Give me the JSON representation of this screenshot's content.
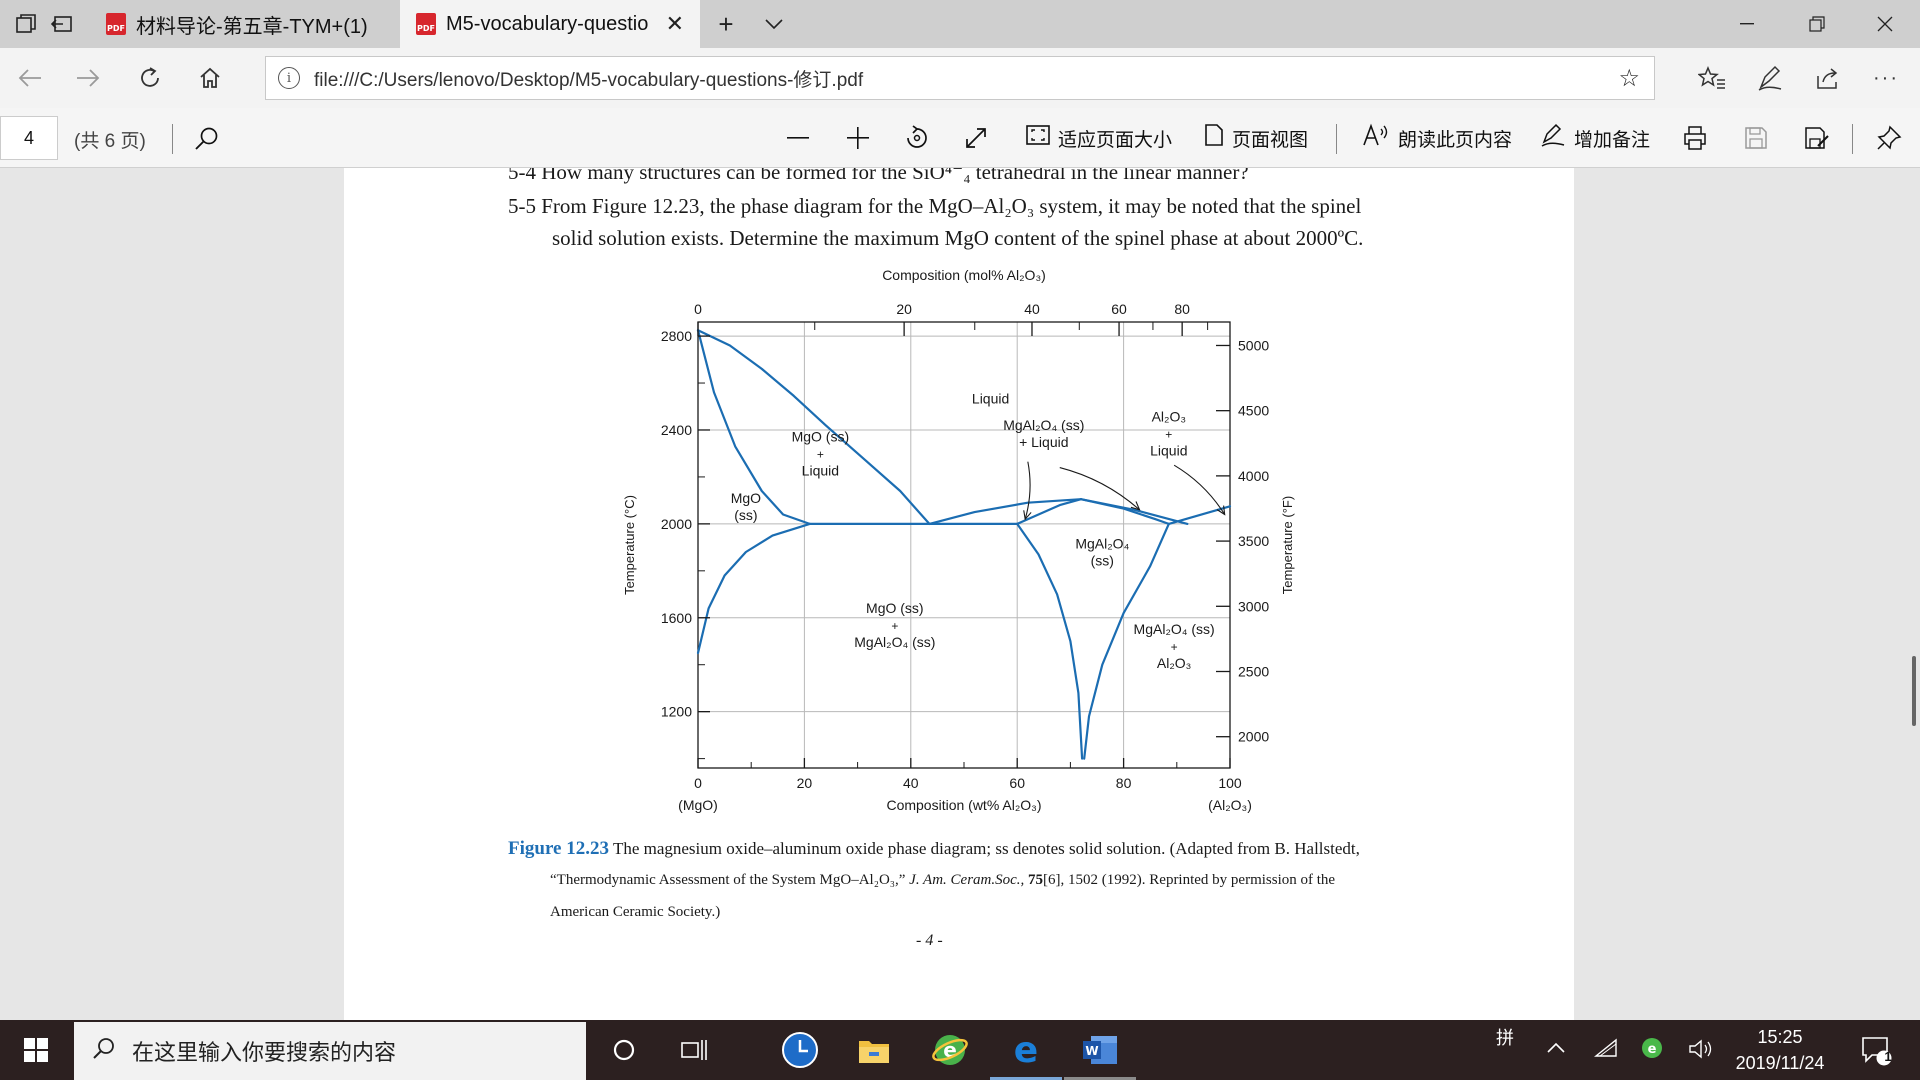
{
  "browser": {
    "tabs": [
      {
        "title": "材料导论-第五章-TYM+(1)",
        "active": false
      },
      {
        "title": "M5-vocabulary-questio",
        "active": true
      }
    ],
    "pdf_badge": "PDF",
    "url": "file:///C:/Users/lenovo/Desktop/M5-vocabulary-questions-修订.pdf",
    "icons": [
      "tab-manager-icon",
      "set-aside-icon",
      "pdf-icon",
      "close-icon",
      "new-tab-icon",
      "chevron-down-icon",
      "minimize-icon",
      "restore-icon",
      "window-close-icon",
      "back-icon",
      "forward-icon",
      "refresh-icon",
      "home-icon",
      "info-icon",
      "star-icon",
      "favorites-icon",
      "pen-icon",
      "share-icon",
      "more-icon"
    ]
  },
  "pdf_toolbar": {
    "page_number": "4",
    "page_total": "(共 6 页)",
    "fit_page": "适应页面大小",
    "page_view": "页面视图",
    "read_aloud": "朗读此页内容",
    "add_note": "增加备注"
  },
  "document": {
    "line_cutoff": "5-4 How many structures can be formed for the SiO⁴⁻₄ tetrahedral in the linear manner?",
    "q55_line1": "5-5 From Figure 12.23, the phase diagram for the MgO–Al₂O₃ system, it may be noted that the spinel",
    "q55_line2": "solid solution exists. Determine the maximum MgO content of the spinel phase at about 2000ºC.",
    "caption_label": "Figure 12.23",
    "caption_line1": "The magnesium oxide–aluminum oxide phase diagram; ss denotes solid solution. (Adapted from B. Hallstedt,",
    "caption_line2_a": "“Thermodynamic Assessment of the System MgO–Al₂O₃,” ",
    "caption_line2_b": "J. Am. Ceram.Soc.,",
    "caption_line2_c": " 75",
    "caption_line2_d": "[6], 1502 (1992). Reprinted by permission of the",
    "caption_line3": "American Ceramic Society.)",
    "page_footer": "- 4 -"
  },
  "chart_data": {
    "type": "phase_diagram",
    "title": "",
    "x_bottom": {
      "label": "Composition (wt% Al₂O₃)",
      "range": [
        0,
        100
      ],
      "ticks": [
        0,
        20,
        40,
        60,
        80,
        100
      ],
      "end_labels": [
        "(MgO)",
        "(Al₂O₃)"
      ]
    },
    "x_top": {
      "label": "Composition (mol% Al₂O₃)",
      "ticks": [
        0,
        20,
        40,
        60,
        80
      ]
    },
    "y_left": {
      "label": "Temperature (°C)",
      "range": [
        960,
        2860
      ],
      "ticks": [
        1200,
        1600,
        2000,
        2400,
        2800
      ]
    },
    "y_right": {
      "label": "Temperature (°F)",
      "ticks": [
        2000,
        2500,
        3000,
        3500,
        4000,
        4500,
        5000
      ]
    },
    "grid": true,
    "phase_labels": [
      {
        "lines": [
          "Liquid"
        ],
        "x": 55,
        "T": 2535
      },
      {
        "lines": [
          "MgO (ss)",
          "+",
          "Liquid"
        ],
        "x": 23,
        "T": 2300
      },
      {
        "lines": [
          "MgO",
          "(ss)"
        ],
        "x": 9,
        "T": 2075
      },
      {
        "lines": [
          "MgAl₂O₄ (ss)",
          "+ Liquid"
        ],
        "x": 65,
        "T": 2385
      },
      {
        "lines": [
          "Al₂O₃",
          "+",
          "Liquid"
        ],
        "x": 88.5,
        "T": 2385
      },
      {
        "lines": [
          "MgAl₂O₄",
          "(ss)"
        ],
        "x": 76,
        "T": 1880
      },
      {
        "lines": [
          "MgO (ss)",
          "+",
          "MgAl₂O₄ (ss)"
        ],
        "x": 37,
        "T": 1570
      },
      {
        "lines": [
          "MgAl₂O₄ (ss)",
          "+",
          "Al₂O₃"
        ],
        "x": 89.5,
        "T": 1480
      }
    ],
    "boundaries": {
      "mgo_liquidus": [
        [
          0,
          2825
        ],
        [
          6,
          2760
        ],
        [
          12,
          2660
        ],
        [
          18,
          2545
        ],
        [
          24,
          2420
        ],
        [
          31,
          2280
        ],
        [
          38,
          2140
        ],
        [
          43.5,
          2000
        ]
      ],
      "mgo_solidus": [
        [
          0,
          2825
        ],
        [
          3,
          2560
        ],
        [
          7,
          2330
        ],
        [
          12,
          2140
        ],
        [
          16,
          2040
        ],
        [
          21,
          2000
        ]
      ],
      "mgo_solvus": [
        [
          0,
          1450
        ],
        [
          2,
          1640
        ],
        [
          5,
          1780
        ],
        [
          9,
          1880
        ],
        [
          14,
          1950
        ],
        [
          21,
          2000
        ]
      ],
      "eutectic_mgo_spinel": [
        [
          21,
          2000
        ],
        [
          60,
          2000
        ]
      ],
      "spinel_liquidus_left": [
        [
          43.5,
          2000
        ],
        [
          52,
          2050
        ],
        [
          62,
          2090
        ],
        [
          72,
          2105
        ]
      ],
      "spinel_liquidus_right": [
        [
          72,
          2105
        ],
        [
          82,
          2060
        ],
        [
          92,
          2000
        ]
      ],
      "spinel_solidus_left": [
        [
          60,
          2000
        ],
        [
          64,
          2040
        ],
        [
          68,
          2080
        ],
        [
          72,
          2105
        ]
      ],
      "spinel_solidus_right": [
        [
          72,
          2105
        ],
        [
          80,
          2065
        ],
        [
          86,
          2020
        ],
        [
          88.5,
          2000
        ]
      ],
      "eutectic_spinel_al2o3": [
        [
          88.5,
          2000
        ],
        [
          100,
          2075
        ]
      ],
      "spinel_solvus_left": [
        [
          60,
          2000
        ],
        [
          64,
          1870
        ],
        [
          67.5,
          1700
        ],
        [
          70,
          1500
        ],
        [
          71.5,
          1280
        ],
        [
          72.2,
          1000
        ]
      ],
      "spinel_solvus_right": [
        [
          72.6,
          1000
        ],
        [
          73.5,
          1180
        ],
        [
          76,
          1400
        ],
        [
          80,
          1620
        ],
        [
          85,
          1820
        ],
        [
          88.5,
          2000
        ]
      ]
    },
    "leaders": [
      {
        "from": [
          62,
          2265
        ],
        "to": [
          61.5,
          2020
        ]
      },
      {
        "from": [
          68,
          2240
        ],
        "to": [
          83,
          2060
        ]
      },
      {
        "from": [
          89.5,
          2250
        ],
        "to": [
          99,
          2040
        ]
      }
    ],
    "colors": {
      "curve": "#1b6db2",
      "grid": "#b8b8b8",
      "axis": "#1a1a1a"
    }
  },
  "taskbar": {
    "search_placeholder": "在这里输入你要搜索的内容",
    "ime": "拼",
    "time": "15:25",
    "date": "2019/11/24",
    "notification_count": "1",
    "icons": [
      "windows-start-icon",
      "search-icon",
      "cortana-icon",
      "task-view-icon",
      "clock-app-icon",
      "file-explorer-icon",
      "ie-green-icon",
      "edge-icon",
      "word-icon",
      "tray-chevron-icon",
      "wifi-icon",
      "green-tray-icon",
      "volume-icon",
      "notification-icon"
    ]
  }
}
